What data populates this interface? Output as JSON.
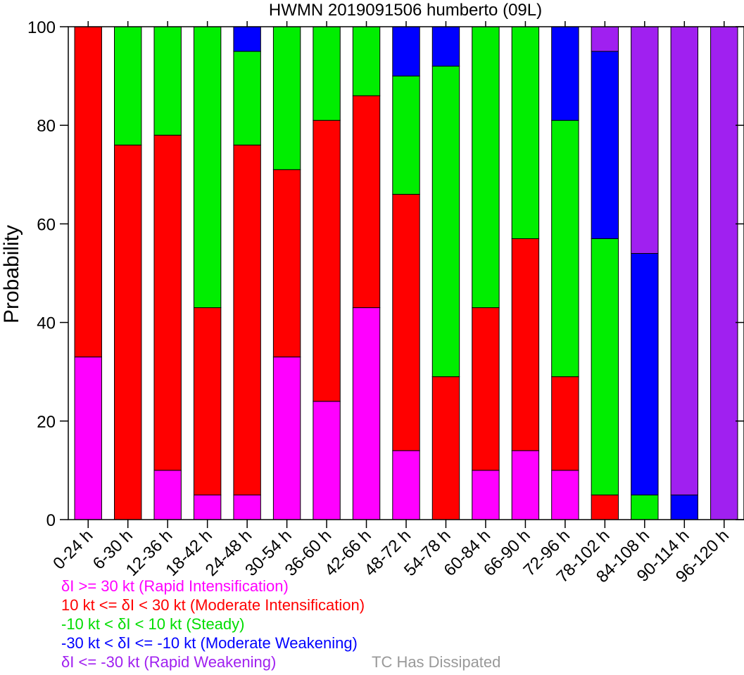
{
  "chart_data": {
    "type": "bar",
    "stacked": true,
    "title": "HWMN 2019091506 humberto (09L)",
    "ylabel": "Probability",
    "xlabel": "",
    "ylim": [
      0,
      100
    ],
    "yticks": [
      0,
      20,
      40,
      60,
      80,
      100
    ],
    "grid": false,
    "categories": [
      "0-24 h",
      "6-30 h",
      "12-36 h",
      "18-42 h",
      "24-48 h",
      "30-54 h",
      "36-60 h",
      "42-66 h",
      "48-72 h",
      "54-78 h",
      "60-84 h",
      "66-90 h",
      "72-96 h",
      "78-102 h",
      "84-108 h",
      "90-114 h",
      "96-120 h"
    ],
    "series": [
      {
        "name": "δI >= 30 kt (Rapid Intensification)",
        "color": "#ff00ff",
        "values": [
          33,
          0,
          10,
          5,
          5,
          33,
          24,
          43,
          14,
          0,
          10,
          14,
          10,
          0,
          0,
          0,
          0
        ]
      },
      {
        "name": "10 kt <= δI < 30 kt (Moderate Intensification)",
        "color": "#ff0000",
        "values": [
          67,
          76,
          68,
          38,
          71,
          38,
          57,
          43,
          52,
          29,
          33,
          43,
          19,
          5,
          0,
          0,
          0
        ]
      },
      {
        "name": "-10 kt < δI < 10 kt (Steady)",
        "color": "#00ee00",
        "values": [
          0,
          24,
          22,
          57,
          19,
          29,
          19,
          14,
          24,
          63,
          57,
          43,
          52,
          52,
          5,
          0,
          0
        ]
      },
      {
        "name": "-30 kt < δI <= -10 kt (Moderate Weakening)",
        "color": "#0000ff",
        "values": [
          0,
          0,
          0,
          0,
          5,
          0,
          0,
          0,
          10,
          8,
          0,
          0,
          19,
          38,
          49,
          5,
          0
        ]
      },
      {
        "name": "δI <= -30 kt (Rapid Weakening)",
        "color": "#a020f0",
        "values": [
          0,
          0,
          0,
          0,
          0,
          0,
          0,
          0,
          0,
          0,
          0,
          0,
          0,
          5,
          46,
          95,
          100
        ]
      }
    ],
    "note": {
      "text": "TC Has Dissipated",
      "color": "#999999"
    }
  }
}
